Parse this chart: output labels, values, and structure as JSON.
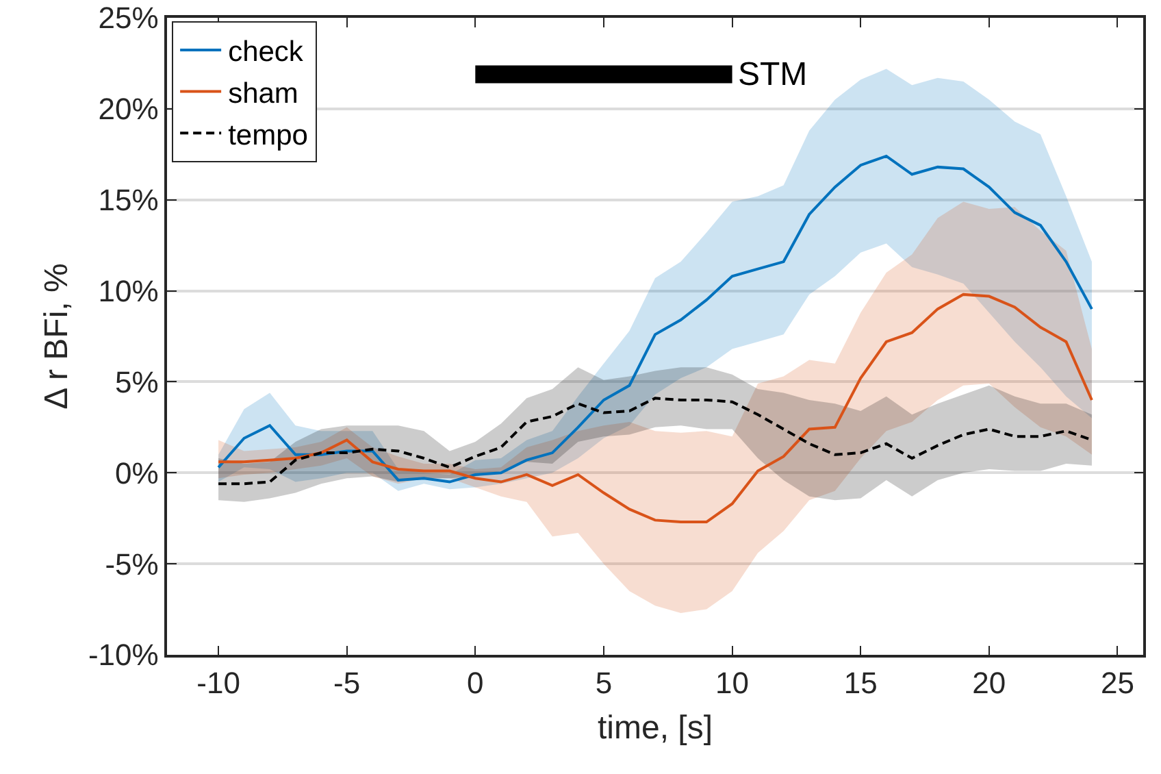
{
  "chart_data": {
    "type": "line",
    "xlabel": "time, [s]",
    "ylabel": "Δ r BFi, %",
    "x": [
      -10,
      -9,
      -8,
      -7,
      -6,
      -5,
      -4,
      -3,
      -2,
      -1,
      0,
      1,
      2,
      3,
      4,
      5,
      6,
      7,
      8,
      9,
      10,
      11,
      12,
      13,
      14,
      15,
      16,
      17,
      18,
      19,
      20,
      21,
      22,
      23,
      24
    ],
    "series": [
      {
        "name": "check",
        "color": "#0072bd",
        "line_style": "solid",
        "values": [
          0.3,
          1.9,
          2.6,
          1.0,
          1.0,
          1.2,
          1.2,
          -0.4,
          -0.3,
          -0.5,
          -0.1,
          0,
          0.7,
          1.1,
          2.5,
          4.0,
          4.8,
          7.6,
          8.4,
          9.5,
          10.8,
          11.2,
          11.6,
          14.2,
          15.7,
          16.9,
          17.4,
          16.4,
          16.8,
          16.7,
          15.7,
          14.3,
          13.6,
          11.6,
          9.0
        ],
        "lower": [
          -0.5,
          0.3,
          0.2,
          -0.5,
          -0.3,
          0,
          0,
          -1.0,
          -0.6,
          -0.9,
          -0.8,
          -0.6,
          -0.3,
          0,
          0.8,
          1.9,
          2.6,
          4.3,
          5.2,
          5.8,
          6.8,
          7.2,
          7.6,
          9.8,
          10.8,
          12.1,
          12.6,
          11.3,
          10.9,
          10.4,
          8.8,
          7.2,
          5.8,
          4.2,
          3.0
        ],
        "upper": [
          1.0,
          3.5,
          4.4,
          2.6,
          2.3,
          2.3,
          2.3,
          0.2,
          0,
          -0.1,
          0.7,
          0.8,
          1.8,
          2.3,
          4.2,
          6.0,
          7.8,
          10.7,
          11.6,
          13.2,
          14.9,
          15.2,
          15.8,
          18.8,
          20.5,
          21.6,
          22.2,
          21.3,
          21.7,
          21.5,
          20.5,
          19.3,
          18.6,
          15.2,
          11.6
        ]
      },
      {
        "name": "sham",
        "color": "#d95319",
        "line_style": "solid",
        "values": [
          0.6,
          0.6,
          0.7,
          0.8,
          1.1,
          1.8,
          0.6,
          0.2,
          0.1,
          0.1,
          -0.3,
          -0.5,
          -0.1,
          -0.7,
          -0.1,
          -1.1,
          -2.0,
          -2.6,
          -2.7,
          -2.7,
          -1.7,
          0.1,
          0.9,
          2.4,
          2.5,
          5.2,
          7.2,
          7.7,
          9.0,
          9.8,
          9.7,
          9.1,
          8.0,
          7.2,
          4.0
        ],
        "lower": [
          -0.3,
          -0.1,
          0,
          0.2,
          0.4,
          0.8,
          -0.2,
          -0.6,
          -0.3,
          -0.3,
          -0.8,
          -1.3,
          -1.6,
          -3.5,
          -3.3,
          -5.0,
          -6.5,
          -7.3,
          -7.7,
          -7.5,
          -6.5,
          -4.4,
          -3.2,
          -1.5,
          -1.0,
          0.8,
          2.3,
          2.8,
          4.0,
          4.8,
          4.9,
          3.6,
          2.5,
          2.0,
          1.0
        ],
        "upper": [
          1.8,
          1.2,
          1.3,
          1.4,
          1.7,
          2.5,
          1.4,
          0.9,
          0.5,
          0.5,
          0.2,
          0.3,
          1.4,
          1.8,
          2.3,
          2.6,
          2.8,
          2.3,
          2.2,
          2.3,
          2.0,
          4.9,
          5.3,
          6.2,
          6.0,
          8.8,
          11.0,
          12.0,
          14.0,
          14.9,
          14.5,
          14.6,
          13.3,
          12.2,
          6.8
        ]
      },
      {
        "name": "tempo",
        "color": "#000000",
        "line_style": "dashed",
        "values": [
          -0.6,
          -0.6,
          -0.5,
          0.7,
          1.1,
          1.1,
          1.3,
          1.2,
          0.8,
          0.3,
          0.9,
          1.4,
          2.8,
          3.1,
          3.8,
          3.3,
          3.4,
          4.1,
          4.0,
          4.0,
          3.9,
          3.2,
          2.4,
          1.6,
          1.0,
          1.1,
          1.6,
          0.8,
          1.5,
          2.1,
          2.4,
          2.0,
          2.0,
          2.3,
          1.8
        ],
        "lower": [
          -1.5,
          -1.6,
          -1.4,
          -1.1,
          -0.6,
          -0.3,
          -0.2,
          -0.5,
          -0.3,
          -0.3,
          -0.2,
          0.1,
          0.6,
          0.5,
          1.7,
          2.0,
          2.1,
          2.5,
          2.6,
          2.4,
          2.4,
          0.8,
          -0.4,
          -1.3,
          -1.5,
          -1.4,
          -0.4,
          -1.3,
          -0.4,
          0,
          0.2,
          0.1,
          0.1,
          0.5,
          0.4
        ],
        "upper": [
          0.8,
          0.5,
          0.6,
          1.7,
          2.4,
          2.6,
          2.6,
          2.6,
          2.3,
          1.2,
          1.7,
          2.7,
          4.1,
          4.6,
          5.8,
          5.1,
          5.3,
          5.6,
          5.8,
          5.8,
          5.4,
          4.6,
          4.4,
          4.0,
          3.8,
          3.4,
          4.2,
          3.2,
          3.8,
          4.3,
          4.8,
          4.2,
          3.8,
          3.8,
          3.2
        ]
      },
      {
        "color": "#000000",
        "line_style": "solid",
        "x": [
          0,
          10
        ],
        "values": [
          21.9,
          21.9
        ]
      }
    ],
    "annotations": [
      {
        "text": "STM",
        "x": 10,
        "y": 21.9
      }
    ],
    "xlim": [
      -12,
      26
    ],
    "xticks": [
      -10,
      -5,
      0,
      5,
      10,
      15,
      20,
      25
    ],
    "ylim": [
      -10,
      25
    ],
    "yticks": [
      {
        "value": -10,
        "label": "-10%"
      },
      {
        "value": -5,
        "label": "-5%"
      },
      {
        "value": 0,
        "label": "0%"
      },
      {
        "value": 5,
        "label": "5%"
      },
      {
        "value": 10,
        "label": "10%"
      },
      {
        "value": 15,
        "label": "15%"
      },
      {
        "value": 20,
        "label": "20%"
      },
      {
        "value": 25,
        "label": "25%"
      }
    ],
    "grid": "y",
    "legend": "top left",
    "marker": "none"
  }
}
